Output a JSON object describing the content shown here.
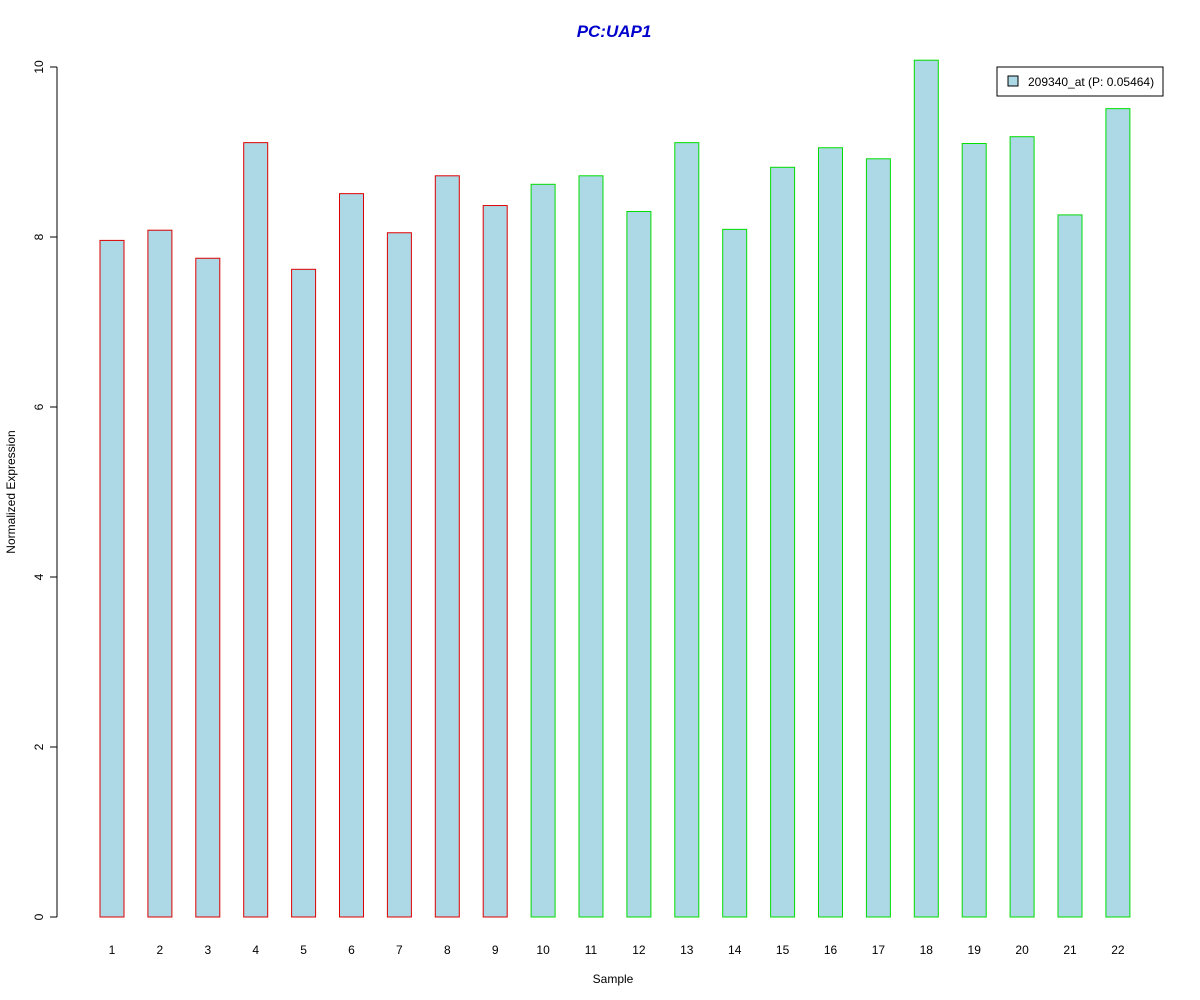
{
  "chart_data": {
    "type": "bar",
    "title": "PC:UAP1",
    "title_color": "#0000CD",
    "xlabel": "Sample",
    "ylabel": "Normalized Expression",
    "ylim": [
      0,
      10
    ],
    "yticks": [
      0,
      2,
      4,
      6,
      8,
      10
    ],
    "grid": false,
    "legend_position": "top-right",
    "bar_fill": "#ADD8E6",
    "categories": [
      "1",
      "2",
      "3",
      "4",
      "5",
      "6",
      "7",
      "8",
      "9",
      "10",
      "11",
      "12",
      "13",
      "14",
      "15",
      "16",
      "17",
      "18",
      "19",
      "20",
      "21",
      "22"
    ],
    "series": [
      {
        "name": "209340_at (P: 0.05464)",
        "values": [
          7.96,
          8.08,
          7.75,
          9.11,
          7.62,
          8.51,
          8.05,
          8.72,
          8.37,
          8.62,
          8.72,
          8.3,
          9.11,
          8.09,
          8.82,
          9.05,
          8.92,
          10.08,
          9.1,
          9.18,
          8.26,
          9.51
        ]
      }
    ],
    "bar_groups": [
      "red",
      "red",
      "red",
      "red",
      "red",
      "red",
      "red",
      "red",
      "red",
      "green",
      "green",
      "green",
      "green",
      "green",
      "green",
      "green",
      "green",
      "green",
      "green",
      "green",
      "green",
      "green"
    ],
    "group_colors": {
      "red": "#DD0000",
      "green": "#00DD00"
    }
  }
}
